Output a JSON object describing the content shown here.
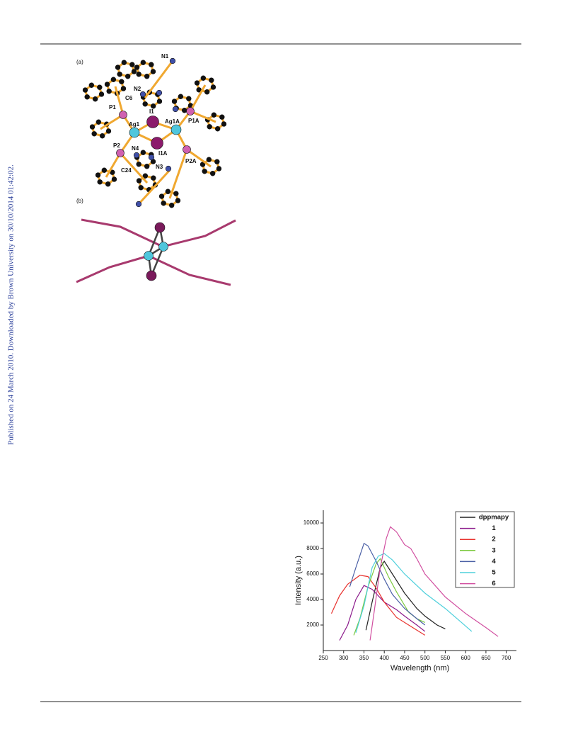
{
  "watermark": "Published on 24 March 2010. Downloaded by Brown University on 30/10/2014 01:42:02.",
  "figure": {
    "labels": [
      "(a)",
      "(b)",
      "N1",
      "N2",
      "C6",
      "P1",
      "I1",
      "Ag1",
      "Ag1A",
      "P1A",
      "P2",
      "N4",
      "I1A",
      "C24",
      "N3",
      "P2A"
    ]
  },
  "chart_data": {
    "type": "line",
    "x_label": "Wavelength (nm)",
    "y_label": "Intensity (a.u.)",
    "xlim": [
      250,
      725
    ],
    "ylim": [
      0,
      11000
    ],
    "xticks": [
      250,
      300,
      350,
      400,
      450,
      500,
      550,
      600,
      650,
      700
    ],
    "yticks": [
      2000,
      4000,
      6000,
      8000,
      10000
    ],
    "legend": "upper right",
    "series": [
      {
        "name": "dppmapy",
        "color": "#222222",
        "x": [
          355,
          370,
          390,
          400,
          420,
          450,
          480,
          500,
          530,
          550
        ],
        "values": [
          1600,
          3800,
          6500,
          7000,
          6000,
          4500,
          3300,
          2700,
          2000,
          1700
        ]
      },
      {
        "name": "1",
        "color": "#8b1a8b",
        "x": [
          290,
          310,
          330,
          350,
          370,
          400,
          430,
          450,
          480,
          500
        ],
        "values": [
          800,
          2000,
          4000,
          5100,
          4800,
          3800,
          3200,
          2700,
          2000,
          1500
        ]
      },
      {
        "name": "2",
        "color": "#e8322e",
        "x": [
          270,
          290,
          310,
          340,
          360,
          380,
          400,
          430,
          460,
          500
        ],
        "values": [
          2900,
          4300,
          5200,
          5900,
          5800,
          4900,
          3800,
          2600,
          2000,
          1200
        ]
      },
      {
        "name": "3",
        "color": "#7cc940",
        "x": [
          325,
          340,
          360,
          380,
          390,
          410,
          430,
          460,
          480,
          500
        ],
        "values": [
          1200,
          2500,
          5000,
          6800,
          7200,
          5800,
          4600,
          3000,
          2500,
          2200
        ]
      },
      {
        "name": "4",
        "color": "#4a5fa5",
        "x": [
          315,
          330,
          350,
          360,
          380,
          400,
          420,
          450,
          480,
          500
        ],
        "values": [
          5000,
          6500,
          8400,
          8200,
          7000,
          5600,
          4400,
          3300,
          2500,
          2000
        ]
      },
      {
        "name": "5",
        "color": "#4fd0dc",
        "x": [
          330,
          350,
          370,
          385,
          400,
          420,
          450,
          500,
          550,
          590,
          615
        ],
        "values": [
          1400,
          3500,
          6500,
          7400,
          7600,
          7100,
          6000,
          4500,
          3300,
          2200,
          1500
        ]
      },
      {
        "name": "6",
        "color": "#d14fa0",
        "x": [
          365,
          375,
          390,
          405,
          415,
          430,
          450,
          465,
          480,
          500,
          550,
          600,
          650,
          680
        ],
        "values": [
          800,
          3000,
          6500,
          8800,
          9700,
          9300,
          8300,
          8000,
          7200,
          6000,
          4200,
          2900,
          1800,
          1100
        ]
      }
    ]
  }
}
